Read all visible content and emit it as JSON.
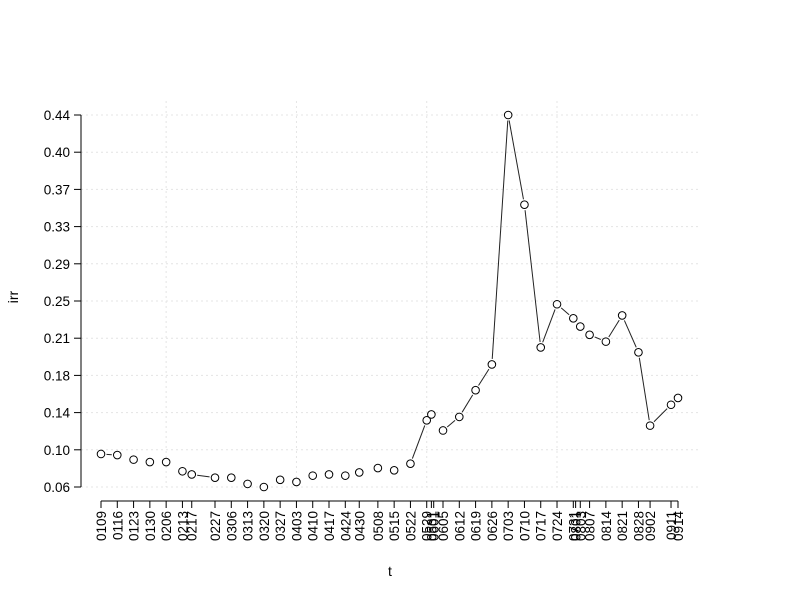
{
  "chart_data": {
    "type": "line",
    "title": "",
    "xlabel": "t",
    "ylabel": "irr",
    "grid": true,
    "yticks": [
      "0.06",
      "0.10",
      "0.14",
      "0.18",
      "0.21",
      "0.25",
      "0.29",
      "0.33",
      "0.37",
      "0.40",
      "0.44"
    ],
    "ylim": [
      0.0593,
      0.4424
    ],
    "x": [
      "0109",
      "0116",
      "0123",
      "0130",
      "0206",
      "0213",
      "0217",
      "0227",
      "0306",
      "0313",
      "0320",
      "0327",
      "0403",
      "0410",
      "0417",
      "0424",
      "0430",
      "0508",
      "0515",
      "0522",
      "0529",
      "0531",
      "0605",
      "0612",
      "0619",
      "0626",
      "0703",
      "0710",
      "0717",
      "0724",
      "0731",
      "0803",
      "0807",
      "0814",
      "0821",
      "0828",
      "0902",
      "0911",
      "0914"
    ],
    "xticks": [
      "0109",
      "0116",
      "0123",
      "0130",
      "0206",
      "0213",
      "0217",
      "0227",
      "0306",
      "0313",
      "0320",
      "0327",
      "0403",
      "0410",
      "0417",
      "0424",
      "0430",
      "0508",
      "0515",
      "0522",
      "0529",
      "0531",
      "0601",
      "0605",
      "0612",
      "0619",
      "0626",
      "0703",
      "0710",
      "0717",
      "0724",
      "0731",
      "0801",
      "0803",
      "0807",
      "0814",
      "0821",
      "0828",
      "0902",
      "0911",
      "0914"
    ],
    "xtick_days": [
      9,
      16,
      23,
      30,
      37,
      44,
      48,
      58,
      65,
      72,
      79,
      86,
      93,
      100,
      107,
      114,
      120,
      128,
      135,
      142,
      149,
      151,
      152,
      156,
      163,
      170,
      177,
      184,
      191,
      198,
      205,
      212,
      213,
      215,
      219,
      226,
      233,
      240,
      245,
      254,
      257
    ],
    "x_days": [
      9,
      16,
      23,
      30,
      37,
      44,
      48,
      58,
      65,
      72,
      79,
      86,
      93,
      100,
      107,
      114,
      120,
      128,
      135,
      142,
      149,
      151,
      156,
      163,
      170,
      177,
      184,
      191,
      198,
      205,
      212,
      215,
      219,
      226,
      233,
      240,
      245,
      254,
      257
    ],
    "values": [
      0.0933,
      0.0922,
      0.0875,
      0.085,
      0.085,
      0.0755,
      0.0722,
      0.0689,
      0.0689,
      0.0625,
      0.0593,
      0.0667,
      0.0645,
      0.071,
      0.0722,
      0.071,
      0.0743,
      0.0788,
      0.0765,
      0.0833,
      0.128,
      0.134,
      0.1175,
      0.1315,
      0.159,
      0.1855,
      0.4424,
      0.35,
      0.203,
      0.2475,
      0.233,
      0.2245,
      0.216,
      0.209,
      0.236,
      0.198,
      0.1225,
      0.144,
      0.151
    ],
    "segments": [
      [
        0,
        1
      ],
      [
        5,
        6
      ],
      [
        6,
        7
      ],
      [
        19,
        20
      ],
      [
        22,
        23
      ],
      [
        23,
        24
      ],
      [
        24,
        25
      ],
      [
        25,
        26
      ],
      [
        26,
        27
      ],
      [
        27,
        28
      ],
      [
        28,
        29
      ],
      [
        29,
        30
      ],
      [
        32,
        33
      ],
      [
        33,
        34
      ],
      [
        34,
        35
      ],
      [
        35,
        36
      ],
      [
        36,
        37
      ]
    ]
  }
}
